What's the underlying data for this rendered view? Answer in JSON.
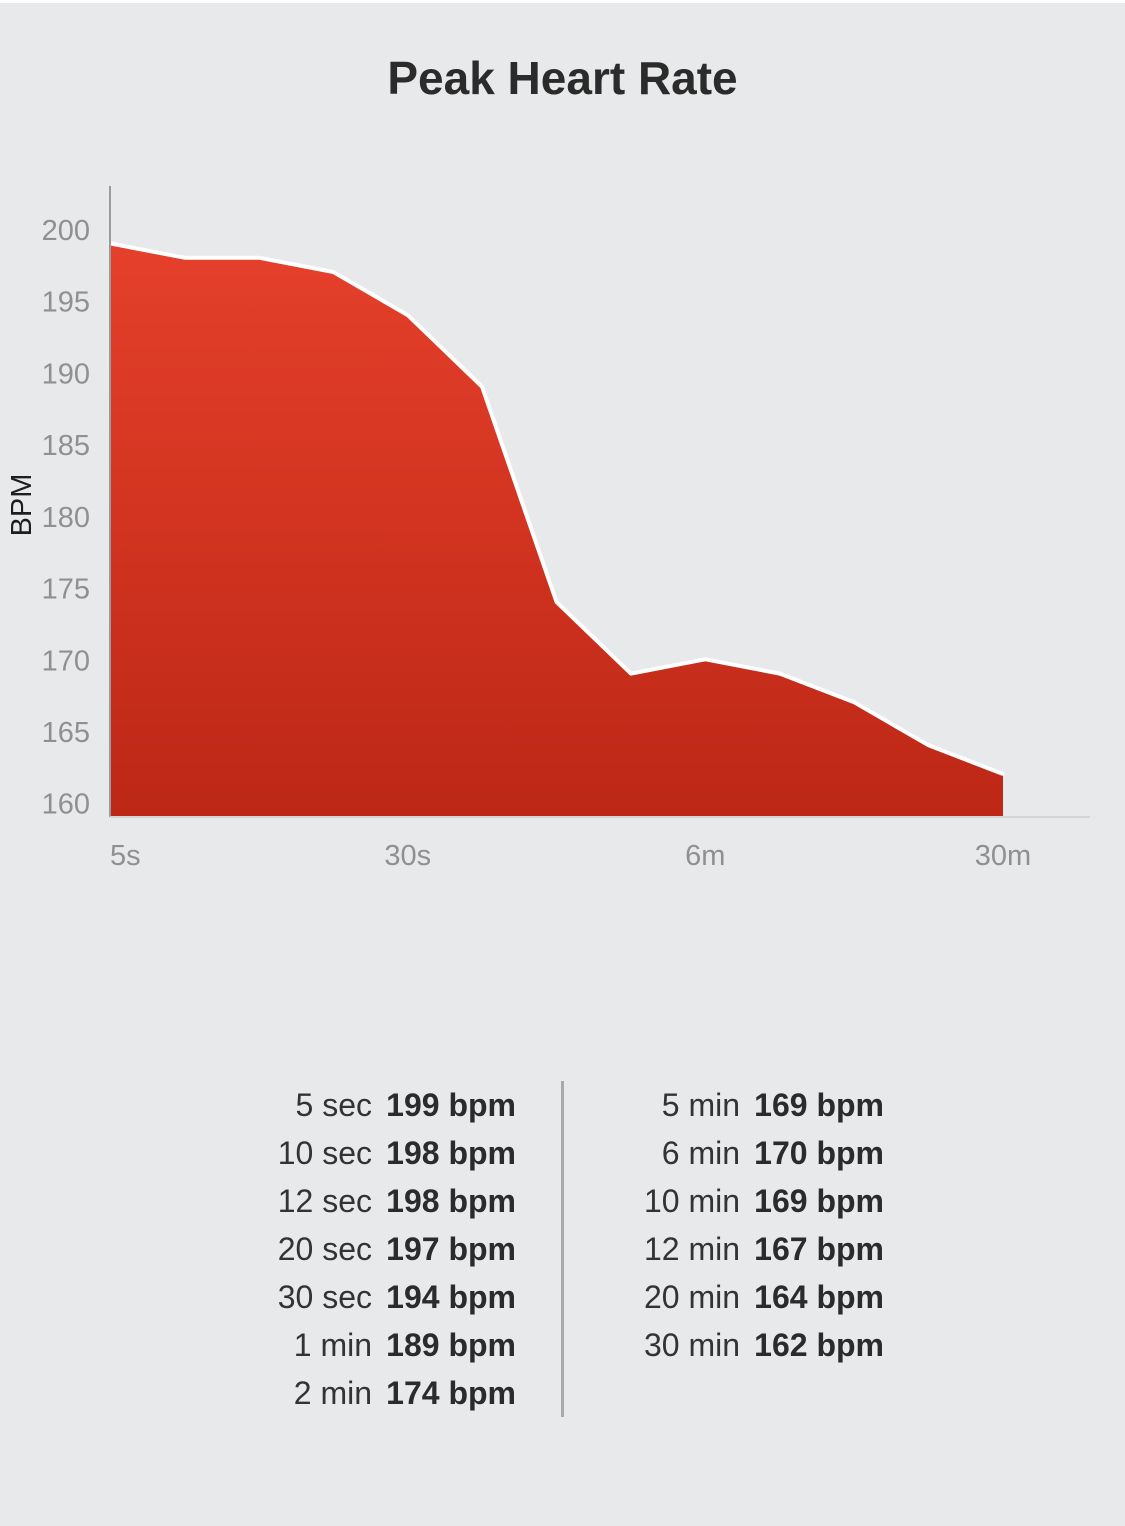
{
  "chart_data": {
    "type": "area",
    "title": "Peak Heart Rate",
    "ylabel": "BPM",
    "xlabel": "",
    "ylim": [
      159,
      203
    ],
    "yticks": [
      160,
      165,
      170,
      175,
      180,
      185,
      190,
      195,
      200
    ],
    "xtick_labels": [
      {
        "label": "5s",
        "at": "5 sec"
      },
      {
        "label": "30s",
        "at": "30 sec"
      },
      {
        "label": "6m",
        "at": "6 min"
      },
      {
        "label": "30m",
        "at": "30 min"
      }
    ],
    "grid": false,
    "series": [
      {
        "x": [
          "5 sec",
          "10 sec",
          "12 sec",
          "20 sec",
          "30 sec",
          "1 min",
          "2 min",
          "5 min",
          "6 min",
          "10 min",
          "12 min",
          "20 min",
          "30 min"
        ],
        "values": [
          199,
          198,
          198,
          197,
          194,
          189,
          174,
          169,
          170,
          169,
          167,
          164,
          162
        ]
      }
    ],
    "colors": {
      "fill_top": "#e5402b",
      "fill_bottom": "#bd2716",
      "line": "#ffffff"
    }
  },
  "stats": {
    "left": [
      {
        "duration": "5 sec",
        "value": "199 bpm"
      },
      {
        "duration": "10 sec",
        "value": "198 bpm"
      },
      {
        "duration": "12 sec",
        "value": "198 bpm"
      },
      {
        "duration": "20 sec",
        "value": "197 bpm"
      },
      {
        "duration": "30 sec",
        "value": "194 bpm"
      },
      {
        "duration": "1 min",
        "value": "189 bpm"
      },
      {
        "duration": "2 min",
        "value": "174 bpm"
      }
    ],
    "right": [
      {
        "duration": "5 min",
        "value": "169 bpm"
      },
      {
        "duration": "6 min",
        "value": "170 bpm"
      },
      {
        "duration": "10 min",
        "value": "169 bpm"
      },
      {
        "duration": "12 min",
        "value": "167 bpm"
      },
      {
        "duration": "20 min",
        "value": "164 bpm"
      },
      {
        "duration": "30 min",
        "value": "162 bpm"
      }
    ]
  }
}
